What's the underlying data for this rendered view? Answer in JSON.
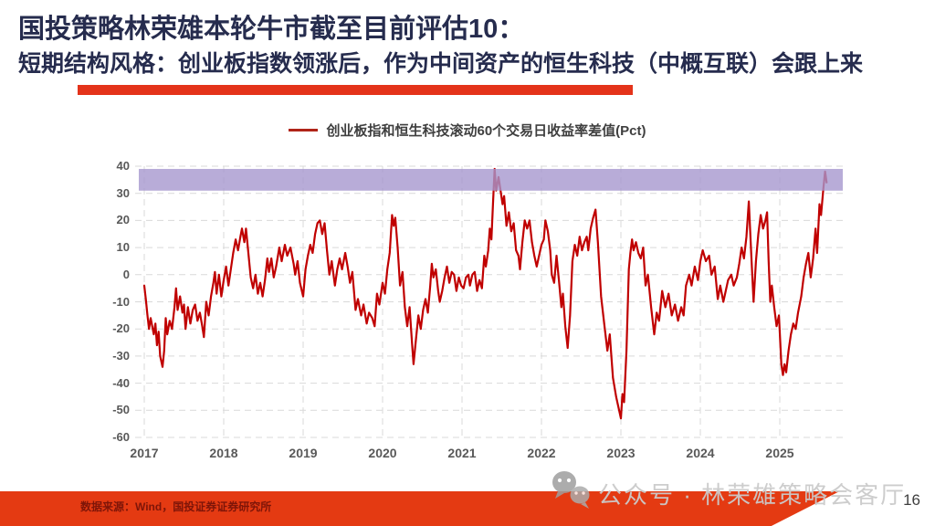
{
  "header": {
    "title": "国投策略林荣雄本轮牛市截至目前评估10：",
    "subtitle": "短期结构风格：创业板指数领涨后，作为中间资产的恒生科技（中概互联）会跟上来",
    "title_color": "#262C4E",
    "accent_bar_color": "#E4331A"
  },
  "footer": {
    "source_text": "数据来源：Wind，国投证券证券研究所",
    "bar_color": "#E43A12",
    "text_color": "#7E1508"
  },
  "watermark": {
    "icon": "wechat-icon",
    "text": "公众号 · 林荣雄策略会客厅",
    "color": "#CBCBCB"
  },
  "page_number": "16",
  "chart_data": {
    "type": "line",
    "title": "创业板指和恒生科技滚动60个交易日收益率差值(Pct)",
    "legend": [
      {
        "label": "创业板指和恒生科技滚动60个交易日收益率差值(Pct)",
        "color": "#B02418"
      }
    ],
    "xlabel": "",
    "ylabel": "",
    "xlim": [
      2017,
      2025.8
    ],
    "ylim": [
      -60,
      40
    ],
    "x_ticks": [
      2017,
      2018,
      2019,
      2020,
      2021,
      2022,
      2023,
      2024,
      2025
    ],
    "y_ticks": [
      40,
      30,
      20,
      10,
      0,
      -10,
      -20,
      -30,
      -40,
      -50,
      -60
    ],
    "grid": "dashed",
    "grid_color": "#D9D9D9",
    "highlight_band": {
      "from": 31,
      "to": 39,
      "color": "#A697CE",
      "opacity": 0.8
    },
    "series": [
      {
        "name": "创业板指和恒生科技滚动60个交易日收益率差值(Pct)",
        "color": "#C00000",
        "points": [
          [
            2017.0,
            -4
          ],
          [
            2017.02,
            -9
          ],
          [
            2017.04,
            -15
          ],
          [
            2017.06,
            -20
          ],
          [
            2017.08,
            -16
          ],
          [
            2017.1,
            -19
          ],
          [
            2017.12,
            -22
          ],
          [
            2017.14,
            -18
          ],
          [
            2017.16,
            -26
          ],
          [
            2017.18,
            -21
          ],
          [
            2017.2,
            -30
          ],
          [
            2017.23,
            -34
          ],
          [
            2017.25,
            -28
          ],
          [
            2017.27,
            -16
          ],
          [
            2017.29,
            -22
          ],
          [
            2017.32,
            -17
          ],
          [
            2017.35,
            -20
          ],
          [
            2017.38,
            -12
          ],
          [
            2017.4,
            -5
          ],
          [
            2017.42,
            -13
          ],
          [
            2017.45,
            -8
          ],
          [
            2017.48,
            -14
          ],
          [
            2017.5,
            -11
          ],
          [
            2017.52,
            -20
          ],
          [
            2017.55,
            -12
          ],
          [
            2017.58,
            -18
          ],
          [
            2017.61,
            -13
          ],
          [
            2017.64,
            -11
          ],
          [
            2017.67,
            -17
          ],
          [
            2017.7,
            -14
          ],
          [
            2017.73,
            -19
          ],
          [
            2017.75,
            -23
          ],
          [
            2017.78,
            -10
          ],
          [
            2017.81,
            -15
          ],
          [
            2017.84,
            -8
          ],
          [
            2017.87,
            -3
          ],
          [
            2017.89,
            1
          ],
          [
            2017.91,
            -7
          ],
          [
            2017.94,
            0
          ],
          [
            2017.97,
            -8
          ],
          [
            2018.0,
            -2
          ],
          [
            2018.03,
            3
          ],
          [
            2018.06,
            -4
          ],
          [
            2018.09,
            2
          ],
          [
            2018.12,
            8
          ],
          [
            2018.15,
            13
          ],
          [
            2018.18,
            9
          ],
          [
            2018.21,
            14
          ],
          [
            2018.23,
            17
          ],
          [
            2018.26,
            12
          ],
          [
            2018.28,
            17
          ],
          [
            2018.31,
            8
          ],
          [
            2018.34,
            -1
          ],
          [
            2018.37,
            -5
          ],
          [
            2018.4,
            0
          ],
          [
            2018.43,
            -7
          ],
          [
            2018.46,
            -3
          ],
          [
            2018.49,
            -8
          ],
          [
            2018.52,
            -2
          ],
          [
            2018.55,
            6
          ],
          [
            2018.57,
            1
          ],
          [
            2018.6,
            6
          ],
          [
            2018.63,
            -1
          ],
          [
            2018.66,
            3
          ],
          [
            2018.7,
            10
          ],
          [
            2018.73,
            5
          ],
          [
            2018.77,
            11
          ],
          [
            2018.8,
            7
          ],
          [
            2018.84,
            10
          ],
          [
            2018.88,
            4
          ],
          [
            2018.9,
            0
          ],
          [
            2018.93,
            5
          ],
          [
            2018.96,
            -3
          ],
          [
            2019.0,
            -8
          ],
          [
            2019.03,
            2
          ],
          [
            2019.06,
            7
          ],
          [
            2019.09,
            11
          ],
          [
            2019.12,
            8
          ],
          [
            2019.15,
            15
          ],
          [
            2019.18,
            19
          ],
          [
            2019.21,
            20
          ],
          [
            2019.24,
            15
          ],
          [
            2019.27,
            19
          ],
          [
            2019.3,
            9
          ],
          [
            2019.33,
            0
          ],
          [
            2019.36,
            5
          ],
          [
            2019.4,
            -4
          ],
          [
            2019.43,
            2
          ],
          [
            2019.46,
            6
          ],
          [
            2019.49,
            2
          ],
          [
            2019.53,
            8
          ],
          [
            2019.56,
            3
          ],
          [
            2019.59,
            -3
          ],
          [
            2019.62,
            1
          ],
          [
            2019.66,
            -13
          ],
          [
            2019.69,
            -9
          ],
          [
            2019.73,
            -15
          ],
          [
            2019.76,
            -11
          ],
          [
            2019.8,
            -18
          ],
          [
            2019.83,
            -14
          ],
          [
            2019.87,
            -16
          ],
          [
            2019.9,
            -19
          ],
          [
            2019.93,
            -7
          ],
          [
            2019.96,
            -11
          ],
          [
            2020.0,
            -3
          ],
          [
            2020.03,
            -7
          ],
          [
            2020.06,
            2
          ],
          [
            2020.09,
            8
          ],
          [
            2020.12,
            22
          ],
          [
            2020.14,
            18
          ],
          [
            2020.16,
            21
          ],
          [
            2020.19,
            10
          ],
          [
            2020.22,
            -4
          ],
          [
            2020.25,
            1
          ],
          [
            2020.28,
            -12
          ],
          [
            2020.31,
            -19
          ],
          [
            2020.34,
            -12
          ],
          [
            2020.37,
            -25
          ],
          [
            2020.39,
            -33
          ],
          [
            2020.42,
            -24
          ],
          [
            2020.45,
            -15
          ],
          [
            2020.48,
            -20
          ],
          [
            2020.51,
            -13
          ],
          [
            2020.54,
            -9
          ],
          [
            2020.57,
            -14
          ],
          [
            2020.6,
            -4
          ],
          [
            2020.62,
            4
          ],
          [
            2020.64,
            -1
          ],
          [
            2020.67,
            2
          ],
          [
            2020.7,
            -6
          ],
          [
            2020.72,
            -10
          ],
          [
            2020.75,
            -6
          ],
          [
            2020.78,
            -1
          ],
          [
            2020.81,
            3
          ],
          [
            2020.84,
            -3
          ],
          [
            2020.87,
            1
          ],
          [
            2020.9,
            0
          ],
          [
            2020.93,
            -6
          ],
          [
            2020.96,
            -1
          ],
          [
            2020.99,
            -4
          ],
          [
            2021.02,
            -5
          ],
          [
            2021.05,
            -1
          ],
          [
            2021.08,
            0
          ],
          [
            2021.1,
            -4
          ],
          [
            2021.13,
            0
          ],
          [
            2021.16,
            1
          ],
          [
            2021.19,
            -6
          ],
          [
            2021.22,
            -2
          ],
          [
            2021.25,
            -5
          ],
          [
            2021.28,
            7
          ],
          [
            2021.3,
            3
          ],
          [
            2021.33,
            9
          ],
          [
            2021.35,
            17
          ],
          [
            2021.37,
            13
          ],
          [
            2021.39,
            26
          ],
          [
            2021.41,
            39
          ],
          [
            2021.43,
            31
          ],
          [
            2021.46,
            36
          ],
          [
            2021.48,
            32
          ],
          [
            2021.51,
            26
          ],
          [
            2021.53,
            29
          ],
          [
            2021.56,
            18
          ],
          [
            2021.59,
            23
          ],
          [
            2021.62,
            16
          ],
          [
            2021.65,
            19
          ],
          [
            2021.68,
            9
          ],
          [
            2021.71,
            7
          ],
          [
            2021.73,
            2
          ],
          [
            2021.76,
            12
          ],
          [
            2021.79,
            20
          ],
          [
            2021.82,
            17
          ],
          [
            2021.85,
            20
          ],
          [
            2021.88,
            12
          ],
          [
            2021.91,
            7
          ],
          [
            2021.94,
            3
          ],
          [
            2021.97,
            7
          ],
          [
            2022.0,
            11
          ],
          [
            2022.03,
            13
          ],
          [
            2022.05,
            20
          ],
          [
            2022.08,
            16
          ],
          [
            2022.11,
            9
          ],
          [
            2022.13,
            0
          ],
          [
            2022.16,
            -3
          ],
          [
            2022.19,
            7
          ],
          [
            2022.22,
            -2
          ],
          [
            2022.25,
            -12
          ],
          [
            2022.27,
            -7
          ],
          [
            2022.3,
            -19
          ],
          [
            2022.33,
            -27
          ],
          [
            2022.36,
            -15
          ],
          [
            2022.39,
            5
          ],
          [
            2022.42,
            11
          ],
          [
            2022.45,
            7
          ],
          [
            2022.48,
            14
          ],
          [
            2022.51,
            9
          ],
          [
            2022.54,
            12
          ],
          [
            2022.57,
            14
          ],
          [
            2022.59,
            9
          ],
          [
            2022.62,
            17
          ],
          [
            2022.65,
            21
          ],
          [
            2022.68,
            24
          ],
          [
            2022.71,
            12
          ],
          [
            2022.75,
            -8
          ],
          [
            2022.79,
            -18
          ],
          [
            2022.83,
            -28
          ],
          [
            2022.86,
            -22
          ],
          [
            2022.9,
            -38
          ],
          [
            2022.94,
            -45
          ],
          [
            2022.97,
            -49
          ],
          [
            2023.0,
            -53
          ],
          [
            2023.02,
            -44
          ],
          [
            2023.04,
            -47
          ],
          [
            2023.07,
            -28
          ],
          [
            2023.1,
            2
          ],
          [
            2023.12,
            8
          ],
          [
            2023.14,
            13
          ],
          [
            2023.16,
            9
          ],
          [
            2023.19,
            12
          ],
          [
            2023.22,
            8
          ],
          [
            2023.25,
            6
          ],
          [
            2023.28,
            10
          ],
          [
            2023.31,
            -4
          ],
          [
            2023.34,
            0
          ],
          [
            2023.38,
            -12
          ],
          [
            2023.42,
            -22
          ],
          [
            2023.45,
            -14
          ],
          [
            2023.48,
            -17
          ],
          [
            2023.52,
            -6
          ],
          [
            2023.56,
            -12
          ],
          [
            2023.6,
            -7
          ],
          [
            2023.64,
            -15
          ],
          [
            2023.68,
            -11
          ],
          [
            2023.72,
            -17
          ],
          [
            2023.76,
            -12
          ],
          [
            2023.79,
            -15
          ],
          [
            2023.82,
            -4
          ],
          [
            2023.86,
            0
          ],
          [
            2023.89,
            -4
          ],
          [
            2023.93,
            3
          ],
          [
            2023.97,
            -2
          ],
          [
            2024.0,
            5
          ],
          [
            2024.03,
            9
          ],
          [
            2024.07,
            5
          ],
          [
            2024.11,
            7
          ],
          [
            2024.14,
            0
          ],
          [
            2024.18,
            3
          ],
          [
            2024.22,
            -9
          ],
          [
            2024.25,
            -4
          ],
          [
            2024.29,
            -10
          ],
          [
            2024.32,
            -6
          ],
          [
            2024.35,
            -2
          ],
          [
            2024.39,
            0
          ],
          [
            2024.42,
            -4
          ],
          [
            2024.46,
            -1
          ],
          [
            2024.49,
            4
          ],
          [
            2024.52,
            10
          ],
          [
            2024.55,
            6
          ],
          [
            2024.58,
            14
          ],
          [
            2024.61,
            27
          ],
          [
            2024.64,
            8
          ],
          [
            2024.67,
            -10
          ],
          [
            2024.7,
            5
          ],
          [
            2024.73,
            15
          ],
          [
            2024.76,
            22
          ],
          [
            2024.79,
            17
          ],
          [
            2024.82,
            20
          ],
          [
            2024.84,
            23
          ],
          [
            2024.86,
            5
          ],
          [
            2024.88,
            -10
          ],
          [
            2024.9,
            -4
          ],
          [
            2024.93,
            -12
          ],
          [
            2024.96,
            -19
          ],
          [
            2024.99,
            -15
          ],
          [
            2025.02,
            -33
          ],
          [
            2025.04,
            -37
          ],
          [
            2025.06,
            -33
          ],
          [
            2025.08,
            -36
          ],
          [
            2025.11,
            -28
          ],
          [
            2025.14,
            -22
          ],
          [
            2025.17,
            -18
          ],
          [
            2025.2,
            -20
          ],
          [
            2025.23,
            -14
          ],
          [
            2025.27,
            -8
          ],
          [
            2025.3,
            -1
          ],
          [
            2025.33,
            4
          ],
          [
            2025.36,
            8
          ],
          [
            2025.39,
            -1
          ],
          [
            2025.42,
            6
          ],
          [
            2025.45,
            17
          ],
          [
            2025.47,
            8
          ],
          [
            2025.5,
            26
          ],
          [
            2025.52,
            22
          ],
          [
            2025.55,
            32
          ],
          [
            2025.57,
            38
          ],
          [
            2025.59,
            34
          ]
        ]
      }
    ]
  }
}
